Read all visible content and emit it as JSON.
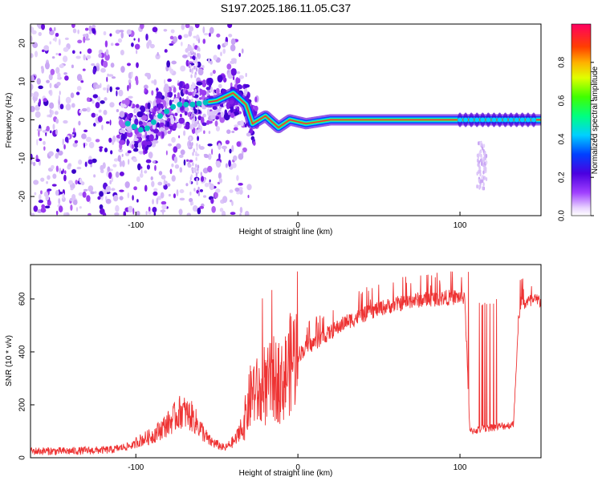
{
  "chart_data": [
    {
      "type": "heatmap",
      "title": "S197.2025.186.11.05.C37",
      "xlabel": "Height of straight line (km)",
      "ylabel": "Frequency (Hz)",
      "xlim": [
        -165,
        150
      ],
      "ylim": [
        -25,
        25
      ],
      "xticks": [
        -100,
        0,
        100
      ],
      "yticks": [
        -20,
        -10,
        0,
        10,
        20
      ],
      "colorbar": {
        "label": "Normalized spectral amplitude",
        "range": [
          0.0,
          1.0
        ],
        "ticks": [
          0.0,
          0.2,
          0.4,
          0.6,
          0.8
        ]
      },
      "ridge": [
        {
          "x": -105,
          "y": -1
        },
        {
          "x": -95,
          "y": -3
        },
        {
          "x": -85,
          "y": 1
        },
        {
          "x": -75,
          "y": 4
        },
        {
          "x": -65,
          "y": 4
        },
        {
          "x": -50,
          "y": 5
        },
        {
          "x": -40,
          "y": 7
        },
        {
          "x": -32,
          "y": 4
        },
        {
          "x": -28,
          "y": -1
        },
        {
          "x": -20,
          "y": 1
        },
        {
          "x": -12,
          "y": -2
        },
        {
          "x": -5,
          "y": 0
        },
        {
          "x": 5,
          "y": -1
        },
        {
          "x": 20,
          "y": 0
        },
        {
          "x": 150,
          "y": 0
        }
      ],
      "grid": false
    },
    {
      "type": "line",
      "title": "",
      "xlabel": "Height of straight line (km)",
      "ylabel": "SNR (10 * v/v)",
      "xlim": [
        -165,
        150
      ],
      "ylim": [
        0,
        730
      ],
      "xticks": [
        -100,
        0,
        100
      ],
      "yticks": [
        0,
        200,
        400,
        600
      ],
      "series": [
        {
          "color": "#ee3333",
          "envelope": [
            {
              "x": -165,
              "y": 25
            },
            {
              "x": -140,
              "y": 25
            },
            {
              "x": -115,
              "y": 30
            },
            {
              "x": -100,
              "y": 50
            },
            {
              "x": -90,
              "y": 70
            },
            {
              "x": -80,
              "y": 110
            },
            {
              "x": -72,
              "y": 150
            },
            {
              "x": -65,
              "y": 130
            },
            {
              "x": -55,
              "y": 55
            },
            {
              "x": -45,
              "y": 30
            },
            {
              "x": -38,
              "y": 60
            },
            {
              "x": -33,
              "y": 140
            },
            {
              "x": -28,
              "y": 260
            },
            {
              "x": -22,
              "y": 230
            },
            {
              "x": -16,
              "y": 300
            },
            {
              "x": -10,
              "y": 280
            },
            {
              "x": -3,
              "y": 380
            },
            {
              "x": 5,
              "y": 420
            },
            {
              "x": 15,
              "y": 460
            },
            {
              "x": 30,
              "y": 520
            },
            {
              "x": 50,
              "y": 570
            },
            {
              "x": 70,
              "y": 600
            },
            {
              "x": 90,
              "y": 610
            },
            {
              "x": 103,
              "y": 615
            },
            {
              "x": 106,
              "y": 100
            },
            {
              "x": 120,
              "y": 115
            },
            {
              "x": 133,
              "y": 125
            },
            {
              "x": 135,
              "y": 380
            },
            {
              "x": 137,
              "y": 590
            },
            {
              "x": 150,
              "y": 600
            }
          ]
        }
      ],
      "grid": false
    }
  ]
}
